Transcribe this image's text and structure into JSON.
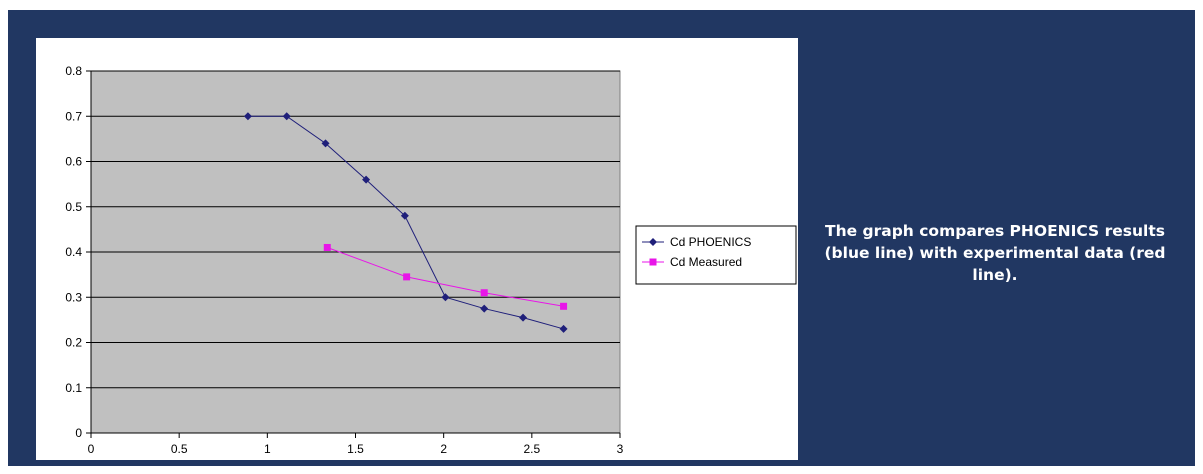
{
  "caption": "The graph compares PHOENICS results (blue line) with experimental data (red line).",
  "colors": {
    "background": "#213762",
    "plot_area": "#c0c0c0",
    "series_phoenics": "#1f1f7a",
    "series_measured": "#e815e8"
  },
  "chart_data": {
    "type": "line",
    "title": "",
    "xlabel": "",
    "ylabel": "",
    "xlim": [
      0,
      3
    ],
    "ylim": [
      0,
      0.8
    ],
    "x_ticks": [
      "0",
      "0.5",
      "1",
      "1.5",
      "2",
      "2.5",
      "3"
    ],
    "y_ticks": [
      "0",
      "0.1",
      "0.2",
      "0.3",
      "0.4",
      "0.5",
      "0.6",
      "0.7",
      "0.8"
    ],
    "grid": "horizontal",
    "legend_position": "right",
    "series": [
      {
        "name": "Cd PHOENICS",
        "marker": "diamond",
        "color": "#1f1f7a",
        "x": [
          0.89,
          1.11,
          1.33,
          1.56,
          1.78,
          2.01,
          2.23,
          2.45,
          2.68
        ],
        "y": [
          0.7,
          0.7,
          0.64,
          0.56,
          0.48,
          0.3,
          0.275,
          0.255,
          0.23
        ]
      },
      {
        "name": "Cd Measured",
        "marker": "square",
        "color": "#e815e8",
        "x": [
          1.34,
          1.79,
          2.23,
          2.68
        ],
        "y": [
          0.41,
          0.345,
          0.31,
          0.28
        ]
      }
    ]
  }
}
